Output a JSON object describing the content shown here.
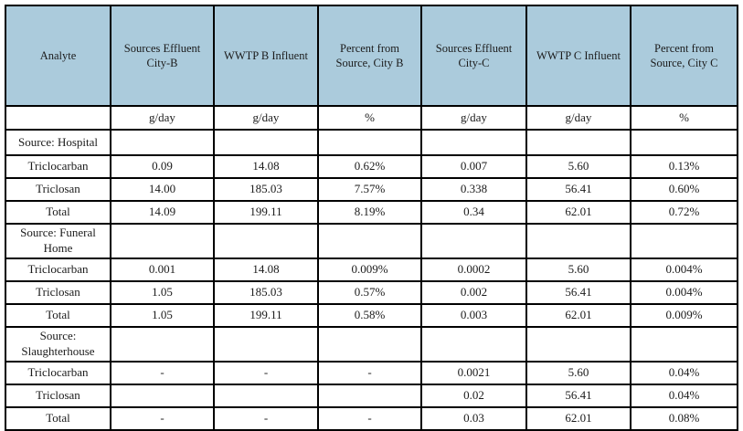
{
  "table": {
    "header_bg": "#abcbdc",
    "border_color": "#000000",
    "text_color": "#1b1b1b",
    "columns": [
      "Analyte",
      "Sources Effluent\nCity-B",
      "WWTP B Influent",
      "Percent from\nSource, City B",
      "Sources Effluent\nCity-C",
      "WWTP C Influent",
      "Percent from\nSource, City C"
    ],
    "units": [
      "",
      "g/day",
      "g/day",
      "%",
      "g/day",
      "g/day",
      "%"
    ],
    "rows": [
      {
        "kind": "section",
        "label": "Source: Hospital",
        "cells": [
          "",
          "",
          "",
          "",
          "",
          ""
        ]
      },
      {
        "kind": "data",
        "label": "Triclocarban",
        "cells": [
          "0.09",
          "14.08",
          "0.62%",
          "0.007",
          "5.60",
          "0.13%"
        ]
      },
      {
        "kind": "data",
        "label": "Triclosan",
        "cells": [
          "14.00",
          "185.03",
          "7.57%",
          "0.338",
          "56.41",
          "0.60%"
        ]
      },
      {
        "kind": "total",
        "label": "Total",
        "cells": [
          "14.09",
          "199.11",
          "8.19%",
          "0.34",
          "62.01",
          "0.72%"
        ]
      },
      {
        "kind": "section",
        "label": "Source: Funeral\nHome",
        "cells": [
          "",
          "",
          "",
          "",
          "",
          ""
        ]
      },
      {
        "kind": "data",
        "label": "Triclocarban",
        "cells": [
          "0.001",
          "14.08",
          "0.009%",
          "0.0002",
          "5.60",
          "0.004%"
        ]
      },
      {
        "kind": "data",
        "label": "Triclosan",
        "cells": [
          "1.05",
          "185.03",
          "0.57%",
          "0.002",
          "56.41",
          "0.004%"
        ]
      },
      {
        "kind": "total",
        "label": "Total",
        "cells": [
          "1.05",
          "199.11",
          "0.58%",
          "0.003",
          "62.01",
          "0.009%"
        ]
      },
      {
        "kind": "section",
        "label": "Source:\nSlaughterhouse",
        "cells": [
          "",
          "",
          "",
          "",
          "",
          ""
        ]
      },
      {
        "kind": "data",
        "label": "Triclocarban",
        "cells": [
          "-",
          "-",
          "-",
          "0.0021",
          "5.60",
          "0.04%"
        ]
      },
      {
        "kind": "data",
        "label": "Triclosan",
        "cells": [
          "",
          "",
          "",
          "0.02",
          "56.41",
          "0.04%"
        ]
      },
      {
        "kind": "total",
        "label": "Total",
        "cells": [
          "-",
          "-",
          "-",
          "0.03",
          "62.01",
          "0.08%"
        ]
      }
    ]
  }
}
